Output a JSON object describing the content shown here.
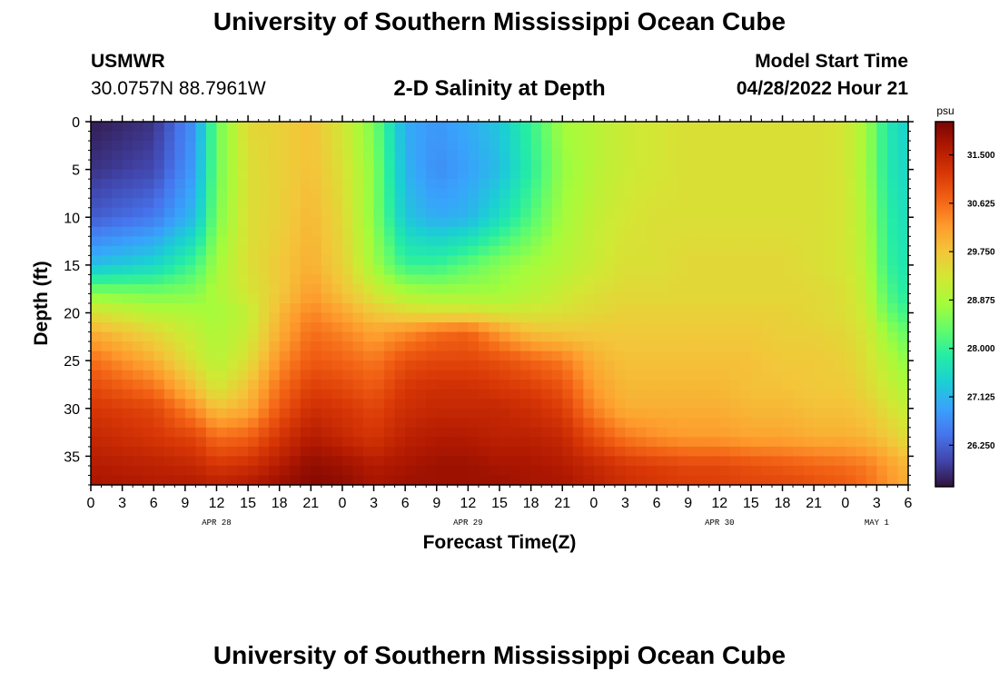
{
  "header": {
    "title": "University of Southern Mississippi Ocean Cube",
    "station": "USMWR",
    "coordinates": "30.0757N  88.7961W",
    "subtitle": "2-D Salinity at Depth",
    "model_start_label": "Model Start Time",
    "model_start_value": "04/28/2022 Hour 21"
  },
  "footer": {
    "title": "University of Southern Mississippi Ocean Cube"
  },
  "colors": {
    "colormap": [
      "#30123b",
      "#4145ab",
      "#4675ed",
      "#39a2fc",
      "#1bcfd4",
      "#24eca6",
      "#61fc6c",
      "#a4fc3b",
      "#d1e834",
      "#f3c63a",
      "#fe9b2d",
      "#f36315",
      "#d93806",
      "#b11901",
      "#7a0402"
    ],
    "frame": "#000000"
  },
  "chart_data": {
    "type": "heatmap",
    "title": "2-D Salinity at Depth",
    "xlabel": "Forecast Time(Z)",
    "ylabel": "Depth (ft)",
    "x_tick_labels": [
      "0",
      "3",
      "6",
      "9",
      "12",
      "15",
      "18",
      "21",
      "0",
      "3",
      "6",
      "9",
      "12",
      "15",
      "18",
      "21",
      "0",
      "3",
      "6",
      "9",
      "12",
      "15",
      "18",
      "21",
      "0",
      "3",
      "6"
    ],
    "x_range_hours": [
      0,
      78
    ],
    "date_labels": [
      {
        "label": "APR 28",
        "hour": 12
      },
      {
        "label": "APR 29",
        "hour": 36
      },
      {
        "label": "APR 30",
        "hour": 60
      },
      {
        "label": "MAY 1",
        "hour": 75
      }
    ],
    "y_ticks": [
      0,
      5,
      10,
      15,
      20,
      25,
      30,
      35
    ],
    "y_range_ft": [
      0,
      38
    ],
    "y_inverted": true,
    "colorbar": {
      "unit": "psu",
      "tick_values": [
        26.25,
        27.125,
        28.0,
        28.875,
        29.75,
        30.625,
        31.5
      ],
      "tick_labels": [
        "26.250",
        "27.125",
        "28.000",
        "28.875",
        "29.750",
        "30.625",
        "31.500"
      ],
      "range": [
        25.5,
        32.1
      ]
    },
    "depths_ft": [
      0,
      5,
      10,
      15,
      18,
      20,
      22,
      25,
      28,
      30,
      33,
      36,
      38
    ],
    "hours": [
      0,
      6,
      10,
      12,
      15,
      18,
      21,
      24,
      27,
      30,
      33,
      36,
      39,
      42,
      45,
      48,
      51,
      54,
      57,
      60,
      63,
      66,
      69,
      72,
      74,
      76,
      78
    ],
    "salinity_psu": [
      [
        25.6,
        25.8,
        26.8,
        28.4,
        29.5,
        29.6,
        29.8,
        29.3,
        28.5,
        27.0,
        26.8,
        27.0,
        27.3,
        28.0,
        28.8,
        29.0,
        29.2,
        29.3,
        29.4,
        29.4,
        29.4,
        29.4,
        29.4,
        29.3,
        28.8,
        27.8,
        27.4
      ],
      [
        25.8,
        26.0,
        26.9,
        28.4,
        29.4,
        29.6,
        29.8,
        29.4,
        28.6,
        27.1,
        26.7,
        26.9,
        27.2,
        27.9,
        28.7,
        29.0,
        29.2,
        29.3,
        29.4,
        29.4,
        29.4,
        29.4,
        29.4,
        29.3,
        28.8,
        27.8,
        27.5
      ],
      [
        26.2,
        26.5,
        27.2,
        28.5,
        29.4,
        29.6,
        29.9,
        29.5,
        28.6,
        27.3,
        27.0,
        27.1,
        27.6,
        28.2,
        28.8,
        29.1,
        29.3,
        29.4,
        29.4,
        29.4,
        29.4,
        29.4,
        29.4,
        29.3,
        28.9,
        27.9,
        27.6
      ],
      [
        27.2,
        27.5,
        28.1,
        28.8,
        29.4,
        29.7,
        30.0,
        29.6,
        28.8,
        28.0,
        28.0,
        28.3,
        28.6,
        28.8,
        29.0,
        29.2,
        29.4,
        29.4,
        29.5,
        29.5,
        29.5,
        29.5,
        29.4,
        29.3,
        29.0,
        28.0,
        27.7
      ],
      [
        28.6,
        28.5,
        28.6,
        28.9,
        29.3,
        29.7,
        30.2,
        29.8,
        29.3,
        28.9,
        28.8,
        28.8,
        28.8,
        29.0,
        29.2,
        29.4,
        29.5,
        29.5,
        29.5,
        29.5,
        29.5,
        29.5,
        29.5,
        29.4,
        29.1,
        28.2,
        27.8
      ],
      [
        29.4,
        29.0,
        28.9,
        28.8,
        29.1,
        29.9,
        30.4,
        30.1,
        29.7,
        29.5,
        29.4,
        29.4,
        29.3,
        29.3,
        29.4,
        29.5,
        29.6,
        29.6,
        29.6,
        29.6,
        29.6,
        29.6,
        29.5,
        29.4,
        29.2,
        28.4,
        28.0
      ],
      [
        30.0,
        29.5,
        29.1,
        28.9,
        29.2,
        30.0,
        30.6,
        30.4,
        30.1,
        30.3,
        30.6,
        30.7,
        30.2,
        29.8,
        29.7,
        29.7,
        29.7,
        29.7,
        29.7,
        29.7,
        29.7,
        29.6,
        29.6,
        29.5,
        29.3,
        28.7,
        28.3
      ],
      [
        30.6,
        30.0,
        29.3,
        29.0,
        29.4,
        30.3,
        30.8,
        30.7,
        30.5,
        30.9,
        31.0,
        31.0,
        30.9,
        30.7,
        30.5,
        30.0,
        29.8,
        29.8,
        29.8,
        29.8,
        29.8,
        29.7,
        29.7,
        29.6,
        29.4,
        29.0,
        28.6
      ],
      [
        31.0,
        30.6,
        29.8,
        29.3,
        29.8,
        30.6,
        31.1,
        31.0,
        30.8,
        31.2,
        31.3,
        31.3,
        31.2,
        31.1,
        30.9,
        30.2,
        29.9,
        29.9,
        29.9,
        29.9,
        29.8,
        29.8,
        29.7,
        29.7,
        29.5,
        29.2,
        28.9
      ],
      [
        31.2,
        31.0,
        30.3,
        29.8,
        30.0,
        30.8,
        31.3,
        31.2,
        31.0,
        31.3,
        31.4,
        31.4,
        31.4,
        31.3,
        31.1,
        30.4,
        30.0,
        30.0,
        30.0,
        30.0,
        29.9,
        29.9,
        29.8,
        29.8,
        29.7,
        29.4,
        29.1
      ],
      [
        31.4,
        31.2,
        31.0,
        30.6,
        30.7,
        31.2,
        31.6,
        31.4,
        31.2,
        31.5,
        31.6,
        31.6,
        31.5,
        31.5,
        31.4,
        30.9,
        30.5,
        30.3,
        30.2,
        30.2,
        30.1,
        30.1,
        30.0,
        30.0,
        29.9,
        29.7,
        29.4
      ],
      [
        31.6,
        31.5,
        31.4,
        31.2,
        31.3,
        31.6,
        31.9,
        31.8,
        31.6,
        31.7,
        31.8,
        31.8,
        31.7,
        31.7,
        31.6,
        31.4,
        31.2,
        31.1,
        31.0,
        31.0,
        30.9,
        30.8,
        30.7,
        30.6,
        30.5,
        30.2,
        29.9
      ],
      [
        31.7,
        31.6,
        31.6,
        31.5,
        31.6,
        31.8,
        32.0,
        31.9,
        31.7,
        31.8,
        31.8,
        31.8,
        31.8,
        31.7,
        31.7,
        31.5,
        31.3,
        31.2,
        31.1,
        31.1,
        31.0,
        31.0,
        30.9,
        30.8,
        30.6,
        30.3,
        30.0
      ]
    ]
  }
}
